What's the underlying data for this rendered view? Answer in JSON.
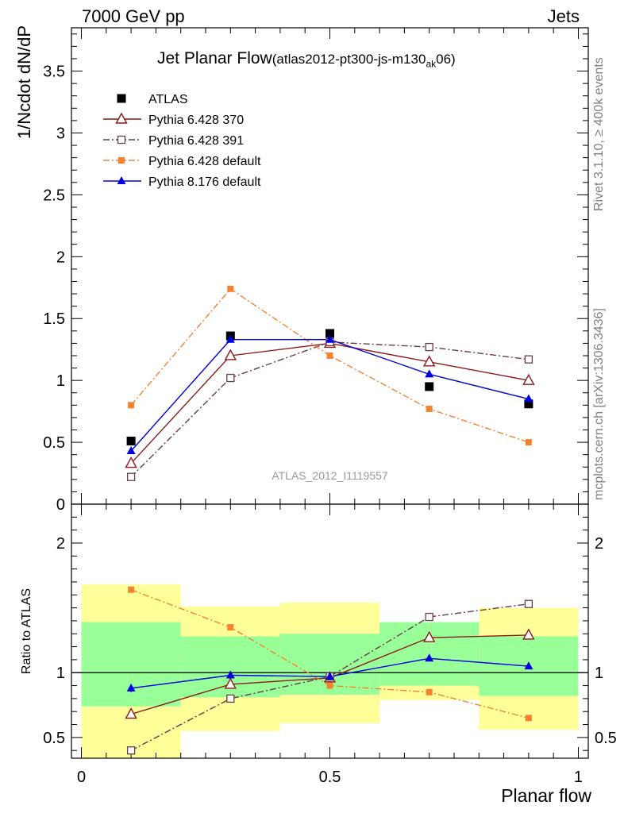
{
  "header": {
    "left": "7000 GeV pp",
    "right": "Jets"
  },
  "title": {
    "main": "Jet Planar Flow",
    "sub_pre": "(atlas2012-pt300-js-m130",
    "sub_subscript": "ak",
    "sub_post": "06)"
  },
  "side_labels": {
    "rivet": "Rivet 3.1.10, ≥ 400k events",
    "source": "mcplots.cern.ch [arXiv:1306.3436]"
  },
  "watermark": "ATLAS_2012_I1119557",
  "colors": {
    "atlas": "#000000",
    "p370": "#8b1a1a",
    "p391": "#6b3a4a",
    "p6def": "#f58231",
    "p8def": "#0000dd",
    "band_yellow": "#ffff99",
    "band_green": "#99ff99"
  },
  "chart_data": [
    {
      "type": "line",
      "title": "Jet Planar Flow",
      "xlabel": "Planar flow",
      "ylabel": "1/Ncdot dN/dP",
      "xlim": [
        -0.02,
        1.02
      ],
      "ylim": [
        0,
        3.85
      ],
      "x_ticks": [
        0,
        0.5,
        1
      ],
      "x_tick_labels": [
        "0",
        "0.5",
        "1"
      ],
      "y_ticks": [
        0,
        0.5,
        1,
        1.5,
        2,
        2.5,
        3,
        3.5
      ],
      "y_tick_labels": [
        "0",
        "0.5",
        "1",
        "1.5",
        "2",
        "2.5",
        "3",
        "3.5"
      ],
      "x": [
        0.1,
        0.3,
        0.5,
        0.7,
        0.9
      ],
      "series": [
        {
          "name": "ATLAS",
          "key": "atlas",
          "marker": "square",
          "values": [
            0.51,
            1.36,
            1.38,
            0.95,
            0.81
          ]
        },
        {
          "name": "Pythia 6.428 370",
          "key": "p370",
          "marker": "open-triangle",
          "values": [
            0.33,
            1.2,
            1.3,
            1.15,
            1.0
          ]
        },
        {
          "name": "Pythia 6.428 391",
          "key": "p391",
          "marker": "open-square",
          "values": [
            0.22,
            1.02,
            1.31,
            1.27,
            1.17
          ]
        },
        {
          "name": "Pythia 6.428 default",
          "key": "p6def",
          "marker": "small-square",
          "values": [
            0.8,
            1.74,
            1.2,
            0.77,
            0.5
          ]
        },
        {
          "name": "Pythia 8.176 default",
          "key": "p8def",
          "marker": "triangle",
          "values": [
            0.43,
            1.33,
            1.33,
            1.05,
            0.85
          ]
        }
      ]
    },
    {
      "type": "line",
      "title": "",
      "xlabel": "Planar flow",
      "ylabel": "Ratio to ATLAS",
      "xlim": [
        -0.02,
        1.02
      ],
      "ylim": [
        0.34,
        2.3
      ],
      "y_ticks": [
        0.5,
        1,
        2
      ],
      "y_tick_labels": [
        "0.5",
        "1",
        "2"
      ],
      "x": [
        0.1,
        0.3,
        0.5,
        0.7,
        0.9
      ],
      "bands": {
        "bin_edges": [
          0,
          0.2,
          0.4,
          0.6,
          0.8,
          1.0
        ],
        "yellow_low": [
          0.34,
          0.55,
          0.61,
          0.79,
          0.56
        ],
        "yellow_high": [
          1.68,
          1.51,
          1.54,
          1.39,
          1.5
        ],
        "green_low": [
          0.74,
          0.81,
          0.83,
          0.9,
          0.82
        ],
        "green_high": [
          1.39,
          1.28,
          1.3,
          1.39,
          1.28
        ]
      },
      "series": [
        {
          "name": "Pythia 6.428 370",
          "key": "p370",
          "marker": "open-triangle",
          "values": [
            0.68,
            0.91,
            0.96,
            1.27,
            1.29
          ]
        },
        {
          "name": "Pythia 6.428 391",
          "key": "p391",
          "marker": "open-square",
          "values": [
            0.4,
            0.8,
            0.97,
            1.43,
            1.53
          ]
        },
        {
          "name": "Pythia 6.428 default",
          "key": "p6def",
          "marker": "small-square",
          "values": [
            1.64,
            1.35,
            0.9,
            0.85,
            0.65
          ]
        },
        {
          "name": "Pythia 8.176 default",
          "key": "p8def",
          "marker": "triangle",
          "values": [
            0.88,
            0.98,
            0.97,
            1.11,
            1.05
          ]
        }
      ]
    }
  ]
}
